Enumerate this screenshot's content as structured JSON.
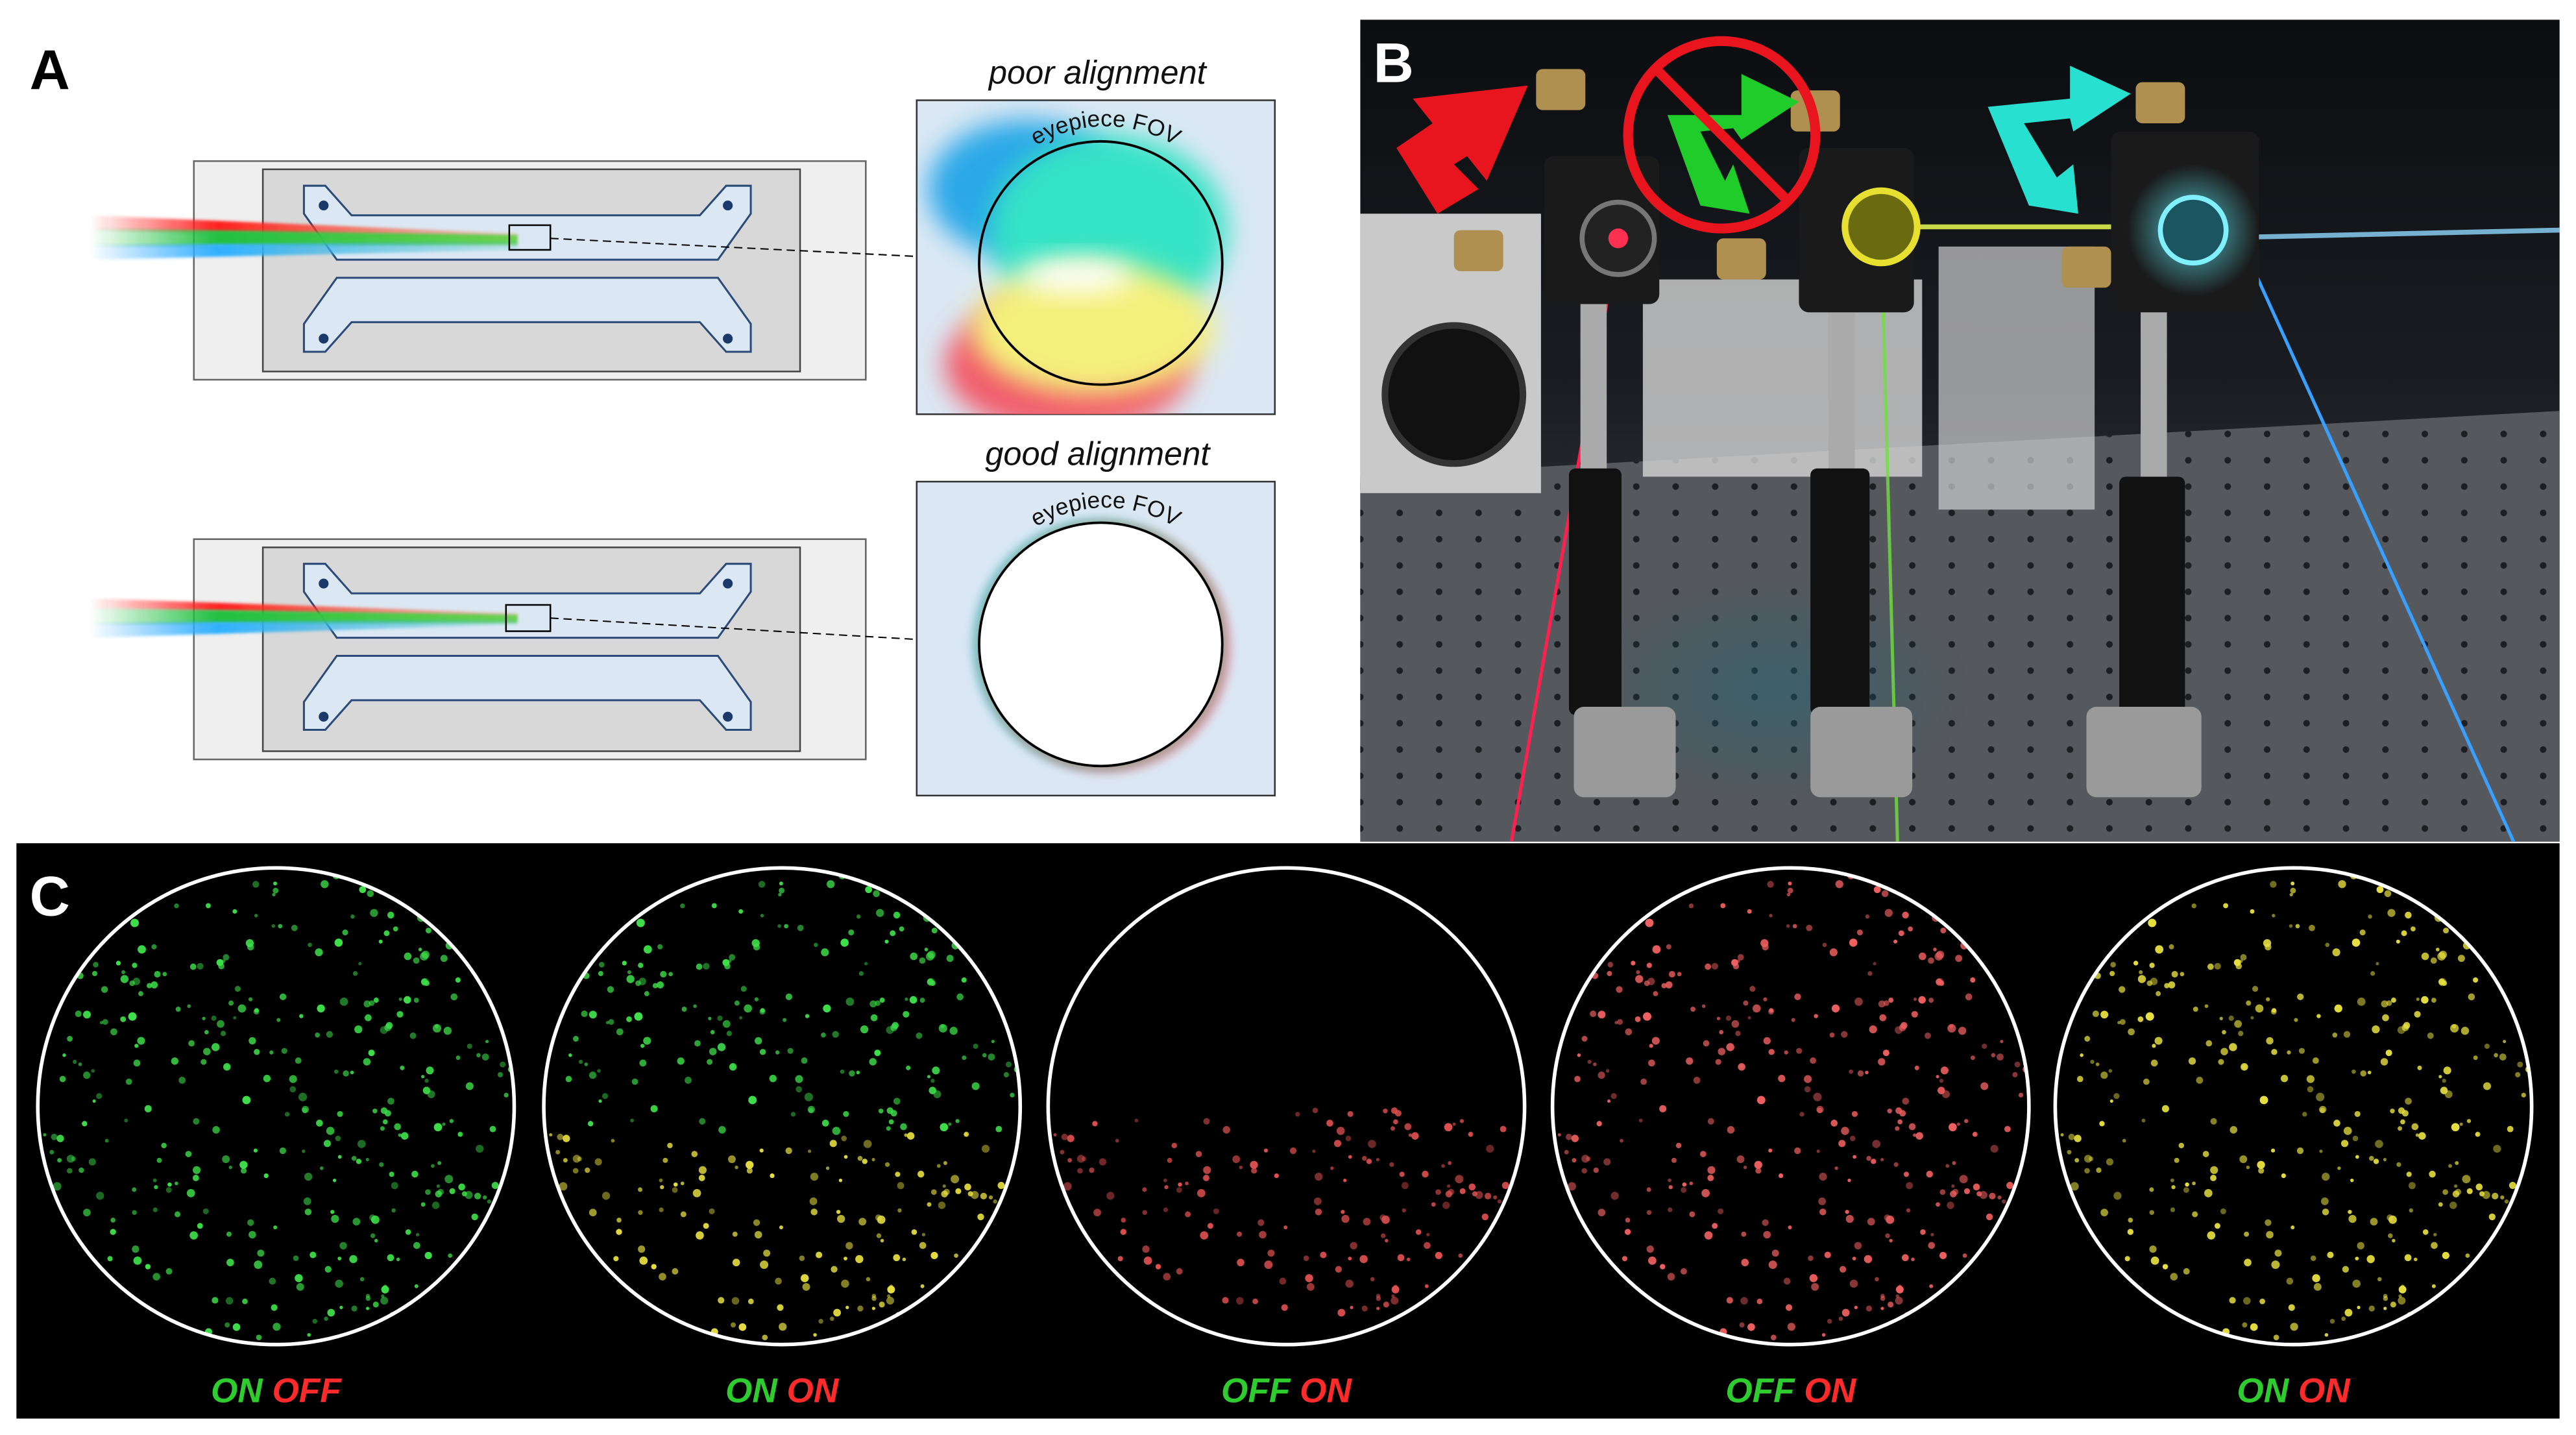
{
  "panel_a": {
    "label": "A",
    "top": {
      "title": "poor alignment",
      "fov_label": "eyepiece FOV"
    },
    "bottom": {
      "title": "good alignment",
      "fov_label": "eyepiece FOV"
    }
  },
  "panel_b": {
    "label": "B"
  },
  "panel_c": {
    "label": "C",
    "images": [
      {
        "green": "ON",
        "red": "OFF"
      },
      {
        "green": "ON",
        "red": "ON"
      },
      {
        "green": "OFF",
        "red": "ON"
      },
      {
        "green": "OFF",
        "red": "ON"
      },
      {
        "green": "ON",
        "red": "ON"
      }
    ]
  }
}
